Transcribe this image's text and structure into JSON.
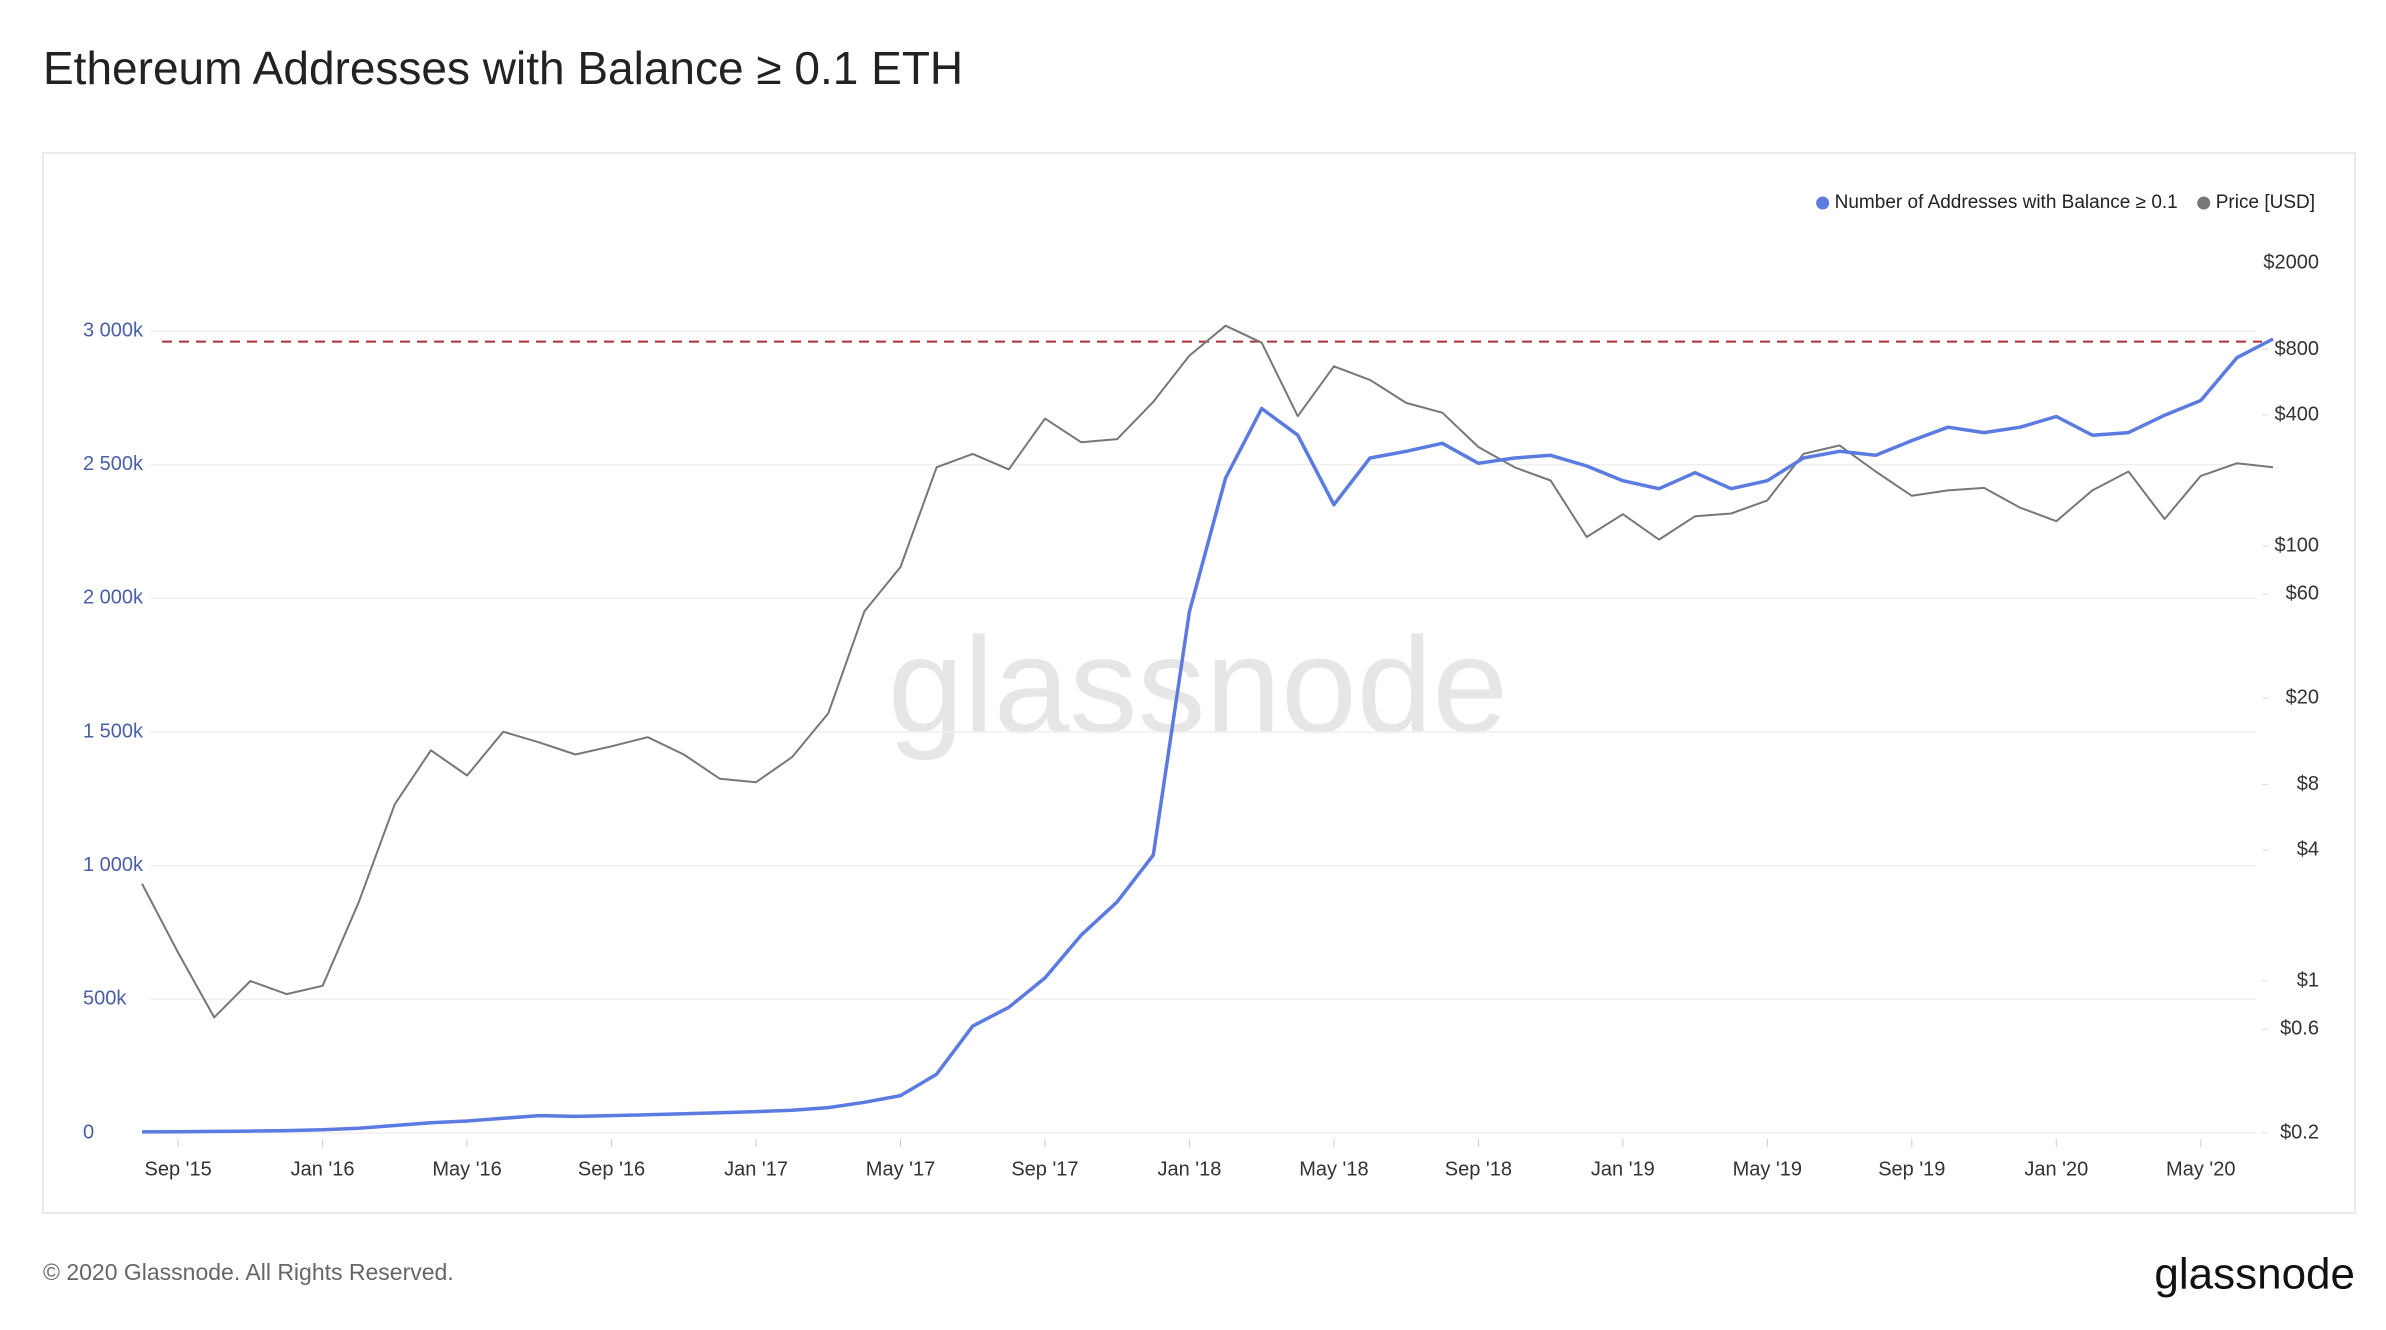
{
  "chart_data": {
    "type": "line",
    "title": "Ethereum Addresses with Balance ≥ 0.1 ETH",
    "watermark": "glassnode",
    "footer": "© 2020 Glassnode. All Rights Reserved.",
    "brand": "glassnode",
    "legend": "top-right",
    "grid": true,
    "x": [
      "2015-08",
      "2015-09",
      "2015-10",
      "2015-11",
      "2015-12",
      "2016-01",
      "2016-02",
      "2016-03",
      "2016-04",
      "2016-05",
      "2016-06",
      "2016-07",
      "2016-08",
      "2016-09",
      "2016-10",
      "2016-11",
      "2016-12",
      "2017-01",
      "2017-02",
      "2017-03",
      "2017-04",
      "2017-05",
      "2017-06",
      "2017-07",
      "2017-08",
      "2017-09",
      "2017-10",
      "2017-11",
      "2017-12",
      "2018-01",
      "2018-02",
      "2018-03",
      "2018-04",
      "2018-05",
      "2018-06",
      "2018-07",
      "2018-08",
      "2018-09",
      "2018-10",
      "2018-11",
      "2018-12",
      "2019-01",
      "2019-02",
      "2019-03",
      "2019-04",
      "2019-05",
      "2019-06",
      "2019-07",
      "2019-08",
      "2019-09",
      "2019-10",
      "2019-11",
      "2019-12",
      "2020-01",
      "2020-02",
      "2020-03",
      "2020-04",
      "2020-05",
      "2020-06",
      "2020-07"
    ],
    "xlim": [
      "2015-08",
      "2020-07"
    ],
    "xticks": [
      {
        "value": "2015-09",
        "label": "Sep '15"
      },
      {
        "value": "2016-01",
        "label": "Jan '16"
      },
      {
        "value": "2016-05",
        "label": "May '16"
      },
      {
        "value": "2016-09",
        "label": "Sep '16"
      },
      {
        "value": "2017-01",
        "label": "Jan '17"
      },
      {
        "value": "2017-05",
        "label": "May '17"
      },
      {
        "value": "2017-09",
        "label": "Sep '17"
      },
      {
        "value": "2018-01",
        "label": "Jan '18"
      },
      {
        "value": "2018-05",
        "label": "May '18"
      },
      {
        "value": "2018-09",
        "label": "Sep '18"
      },
      {
        "value": "2019-01",
        "label": "Jan '19"
      },
      {
        "value": "2019-05",
        "label": "May '19"
      },
      {
        "value": "2019-09",
        "label": "Sep '19"
      },
      {
        "value": "2020-01",
        "label": "Jan '20"
      },
      {
        "value": "2020-05",
        "label": "May '20"
      }
    ],
    "ylim": [
      0,
      3460000
    ],
    "yticks": [
      0,
      {
        "value": 500000,
        "label": "500k"
      },
      {
        "value": 1000000,
        "label": "1 000k"
      },
      {
        "value": 1500000,
        "label": "1 500k"
      },
      {
        "value": 2000000,
        "label": "2 000k"
      },
      {
        "value": 2500000,
        "label": "2 500k"
      },
      {
        "value": 3000000,
        "label": "3 000k"
      }
    ],
    "y2lim": [
      0.2,
      3580
    ],
    "y2scale": "log",
    "y2ticks": [
      {
        "value": 0.2,
        "label": "$0.2"
      },
      {
        "value": 0.6,
        "label": "$0.6"
      },
      {
        "value": 1,
        "label": "$1"
      },
      {
        "value": 4,
        "label": "$4"
      },
      {
        "value": 8,
        "label": "$8"
      },
      {
        "value": 20,
        "label": "$20"
      },
      {
        "value": 60,
        "label": "$60"
      },
      {
        "value": 100,
        "label": "$100"
      },
      {
        "value": 400,
        "label": "$400"
      },
      {
        "value": 800,
        "label": "$800"
      },
      {
        "value": 2000,
        "label": "$2000"
      }
    ],
    "hline": {
      "value": 2960000,
      "color": "#b0303a"
    },
    "series": [
      {
        "name": "Number of Addresses with Balance ≥ 0.1",
        "color": "#5b7be0",
        "values": [
          4000,
          5000,
          6000,
          7000,
          9000,
          12000,
          18000,
          28000,
          38000,
          45000,
          55000,
          65000,
          62000,
          65000,
          68000,
          72000,
          76000,
          80000,
          85000,
          95000,
          115000,
          140000,
          220000,
          400000,
          470000,
          580000,
          740000,
          865000,
          1040000,
          1950000,
          2450000,
          2710000,
          2610000,
          2350000,
          2525000,
          2550000,
          2580000,
          2505000,
          2525000,
          2535000,
          2495000,
          2440000,
          2410000,
          2470000,
          2410000,
          2440000,
          2525000,
          2550000,
          2535000,
          2590000,
          2640000,
          2620000,
          2640000,
          2680000,
          2610000,
          2620000,
          2685000,
          2740000,
          2900000,
          2970000
        ]
      },
      {
        "name": "Price [USD]",
        "color": "#777777",
        "axis": "y2",
        "values": [
          2.8,
          1.35,
          0.68,
          1.0,
          0.87,
          0.95,
          2.3,
          6.5,
          11.5,
          8.8,
          14,
          12.5,
          11,
          12,
          13.2,
          11,
          8.5,
          8.2,
          10.7,
          17,
          50,
          80,
          230,
          265,
          225,
          385,
          300,
          310,
          460,
          750,
          1030,
          860,
          395,
          670,
          580,
          455,
          410,
          285,
          230,
          200,
          110,
          140,
          107,
          137,
          141,
          162,
          265,
          290,
          220,
          170,
          180,
          185,
          150,
          130,
          180,
          220,
          133,
          210,
          240,
          230
        ]
      }
    ]
  }
}
